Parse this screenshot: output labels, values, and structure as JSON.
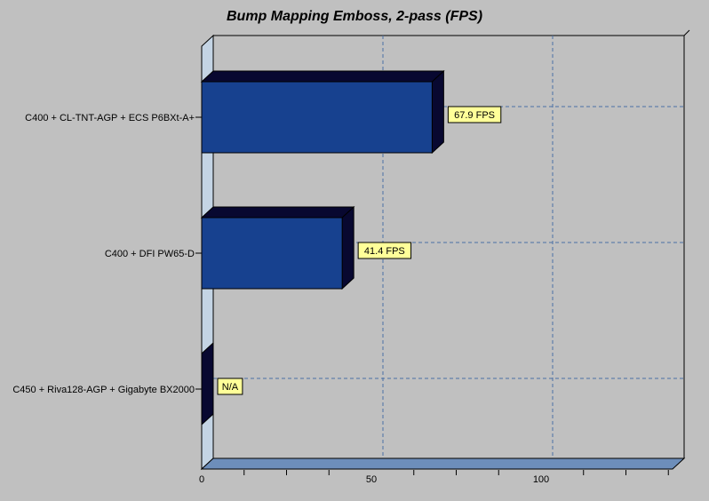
{
  "chart_data": {
    "type": "bar",
    "orientation": "horizontal",
    "style_3d": true,
    "title": "Bump Mapping Emboss, 2-pass (FPS)",
    "categories": [
      "C400 + CL-TNT-AGP + ECS P6BXt-A+",
      "C400 + DFI PW65-D",
      "C450 + Riva128-AGP + Gigabyte BX2000"
    ],
    "values": [
      67.9,
      41.4,
      null
    ],
    "value_labels": [
      "67.9 FPS",
      "41.4 FPS",
      "N/A"
    ],
    "xlabel": "",
    "ylabel": "",
    "x_ticks": [
      0,
      50,
      100
    ],
    "x_minor_tick_step": 12.5,
    "xlim": [
      0,
      140
    ],
    "grid": "dashed-blue",
    "legend": "none"
  },
  "colors": {
    "background": "#c0c0c0",
    "bar_front": "#17418f",
    "bar_shade": "#080830",
    "wall": "#c4d4e4",
    "floor": "#6d8eba",
    "value_label_bg": "#ffff99",
    "gridline": "#4a70a6",
    "border": "#000000",
    "text": "#000000"
  }
}
